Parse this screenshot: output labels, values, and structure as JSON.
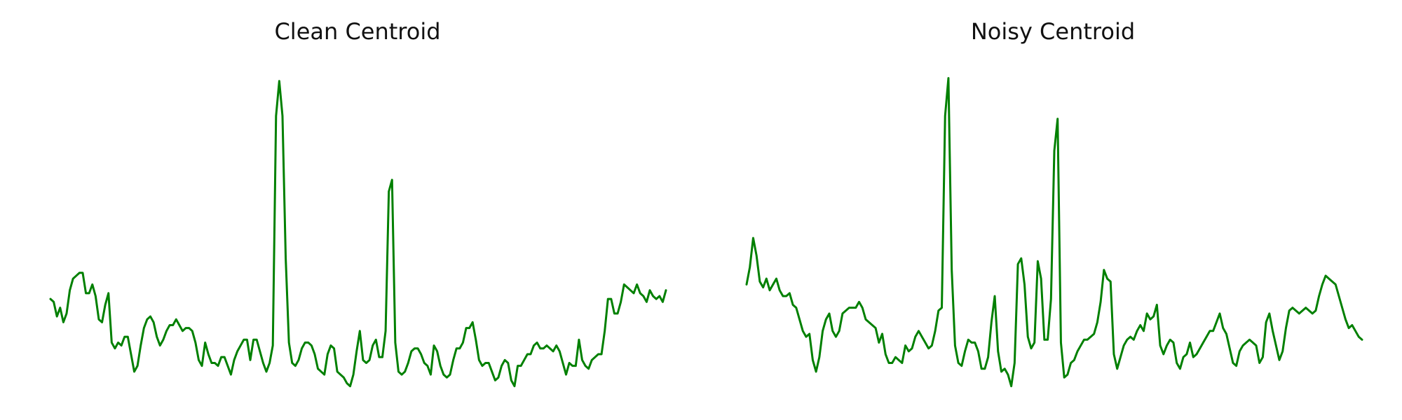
{
  "chart_data": [
    {
      "type": "line",
      "title": "Clean Centroid",
      "axes_visible": false,
      "grid": false,
      "x_range": [
        0,
        179
      ],
      "ylim": [
        -1.4,
        4.2
      ],
      "series": [
        {
          "color": "#008000",
          "values": [
            0.2,
            0.15,
            -0.1,
            0.05,
            -0.2,
            -0.05,
            0.35,
            0.55,
            0.6,
            0.65,
            0.65,
            0.3,
            0.3,
            0.45,
            0.25,
            -0.15,
            -0.2,
            0.1,
            0.3,
            -0.55,
            -0.65,
            -0.55,
            -0.6,
            -0.45,
            -0.45,
            -0.75,
            -1.05,
            -0.95,
            -0.6,
            -0.3,
            -0.15,
            -0.1,
            -0.2,
            -0.45,
            -0.6,
            -0.5,
            -0.35,
            -0.25,
            -0.25,
            -0.15,
            -0.25,
            -0.35,
            -0.3,
            -0.3,
            -0.35,
            -0.55,
            -0.85,
            -0.95,
            -0.55,
            -0.75,
            -0.9,
            -0.9,
            -0.95,
            -0.8,
            -0.8,
            -0.95,
            -1.1,
            -0.85,
            -0.7,
            -0.6,
            -0.5,
            -0.5,
            -0.85,
            -0.5,
            -0.5,
            -0.7,
            -0.9,
            -1.05,
            -0.9,
            -0.6,
            3.35,
            3.95,
            3.35,
            0.9,
            -0.55,
            -0.9,
            -0.95,
            -0.85,
            -0.65,
            -0.55,
            -0.55,
            -0.6,
            -0.75,
            -1.0,
            -1.05,
            -1.1,
            -0.75,
            -0.6,
            -0.65,
            -1.05,
            -1.1,
            -1.15,
            -1.25,
            -1.3,
            -1.1,
            -0.7,
            -0.35,
            -0.85,
            -0.9,
            -0.85,
            -0.6,
            -0.5,
            -0.8,
            -0.8,
            -0.35,
            2.05,
            2.25,
            -0.55,
            -1.05,
            -1.1,
            -1.05,
            -0.9,
            -0.7,
            -0.65,
            -0.65,
            -0.75,
            -0.9,
            -0.95,
            -1.1,
            -0.6,
            -0.7,
            -0.95,
            -1.1,
            -1.15,
            -1.1,
            -0.85,
            -0.65,
            -0.65,
            -0.55,
            -0.3,
            -0.3,
            -0.2,
            -0.5,
            -0.85,
            -0.95,
            -0.9,
            -0.9,
            -1.05,
            -1.2,
            -1.15,
            -0.95,
            -0.85,
            -0.9,
            -1.2,
            -1.3,
            -0.95,
            -0.95,
            -0.85,
            -0.75,
            -0.75,
            -0.6,
            -0.55,
            -0.65,
            -0.65,
            -0.6,
            -0.65,
            -0.7,
            -0.6,
            -0.7,
            -0.9,
            -1.1,
            -0.9,
            -0.95,
            -0.95,
            -0.5,
            -0.85,
            -0.95,
            -1.0,
            -0.85,
            -0.8,
            -0.75,
            -0.75,
            -0.35,
            0.2,
            0.2,
            -0.05,
            -0.05,
            0.15,
            0.45,
            0.4,
            0.35,
            0.3,
            0.45,
            0.3,
            0.25,
            0.15,
            0.35,
            0.25,
            0.2,
            0.25,
            0.15,
            0.35
          ]
        }
      ]
    },
    {
      "type": "line",
      "title": "Noisy Centroid",
      "axes_visible": false,
      "grid": false,
      "x_range": [
        0,
        179
      ],
      "ylim": [
        -1.4,
        4.2
      ],
      "series": [
        {
          "color": "#008000",
          "values": [
            0.45,
            0.75,
            1.25,
            0.95,
            0.5,
            0.4,
            0.55,
            0.35,
            0.45,
            0.55,
            0.35,
            0.25,
            0.25,
            0.3,
            0.1,
            0.05,
            -0.15,
            -0.35,
            -0.45,
            -0.4,
            -0.85,
            -1.05,
            -0.8,
            -0.35,
            -0.15,
            -0.05,
            -0.35,
            -0.45,
            -0.35,
            -0.05,
            0.0,
            0.05,
            0.05,
            0.05,
            0.15,
            0.05,
            -0.15,
            -0.2,
            -0.25,
            -0.3,
            -0.55,
            -0.4,
            -0.75,
            -0.9,
            -0.9,
            -0.8,
            -0.85,
            -0.9,
            -0.6,
            -0.7,
            -0.65,
            -0.45,
            -0.35,
            -0.45,
            -0.55,
            -0.65,
            -0.6,
            -0.35,
            0.0,
            0.05,
            3.35,
            4.0,
            0.7,
            -0.6,
            -0.9,
            -0.95,
            -0.7,
            -0.5,
            -0.55,
            -0.55,
            -0.7,
            -1.0,
            -1.0,
            -0.8,
            -0.2,
            0.25,
            -0.7,
            -1.05,
            -1.0,
            -1.1,
            -1.3,
            -0.9,
            0.8,
            0.9,
            0.45,
            -0.45,
            -0.65,
            -0.55,
            0.85,
            0.55,
            -0.5,
            -0.5,
            0.2,
            2.75,
            3.3,
            -0.55,
            -1.15,
            -1.1,
            -0.9,
            -0.85,
            -0.7,
            -0.6,
            -0.5,
            -0.5,
            -0.45,
            -0.4,
            -0.2,
            0.15,
            0.7,
            0.55,
            0.5,
            -0.75,
            -1.0,
            -0.8,
            -0.6,
            -0.5,
            -0.45,
            -0.5,
            -0.35,
            -0.25,
            -0.35,
            -0.05,
            -0.15,
            -0.1,
            0.1,
            -0.6,
            -0.75,
            -0.6,
            -0.5,
            -0.55,
            -0.9,
            -1.0,
            -0.8,
            -0.75,
            -0.55,
            -0.8,
            -0.75,
            -0.65,
            -0.55,
            -0.45,
            -0.35,
            -0.35,
            -0.2,
            -0.05,
            -0.3,
            -0.4,
            -0.65,
            -0.9,
            -0.95,
            -0.7,
            -0.6,
            -0.55,
            -0.5,
            -0.55,
            -0.6,
            -0.9,
            -0.8,
            -0.2,
            -0.05,
            -0.35,
            -0.6,
            -0.85,
            -0.7,
            -0.3,
            0.0,
            0.05,
            0.0,
            -0.05,
            0.0,
            0.05,
            0.0,
            -0.05,
            0.0,
            0.25,
            0.45,
            0.6,
            0.55,
            0.5,
            0.45,
            0.25,
            0.05,
            -0.15,
            -0.3,
            -0.25,
            -0.35,
            -0.45,
            -0.5
          ]
        }
      ]
    }
  ]
}
